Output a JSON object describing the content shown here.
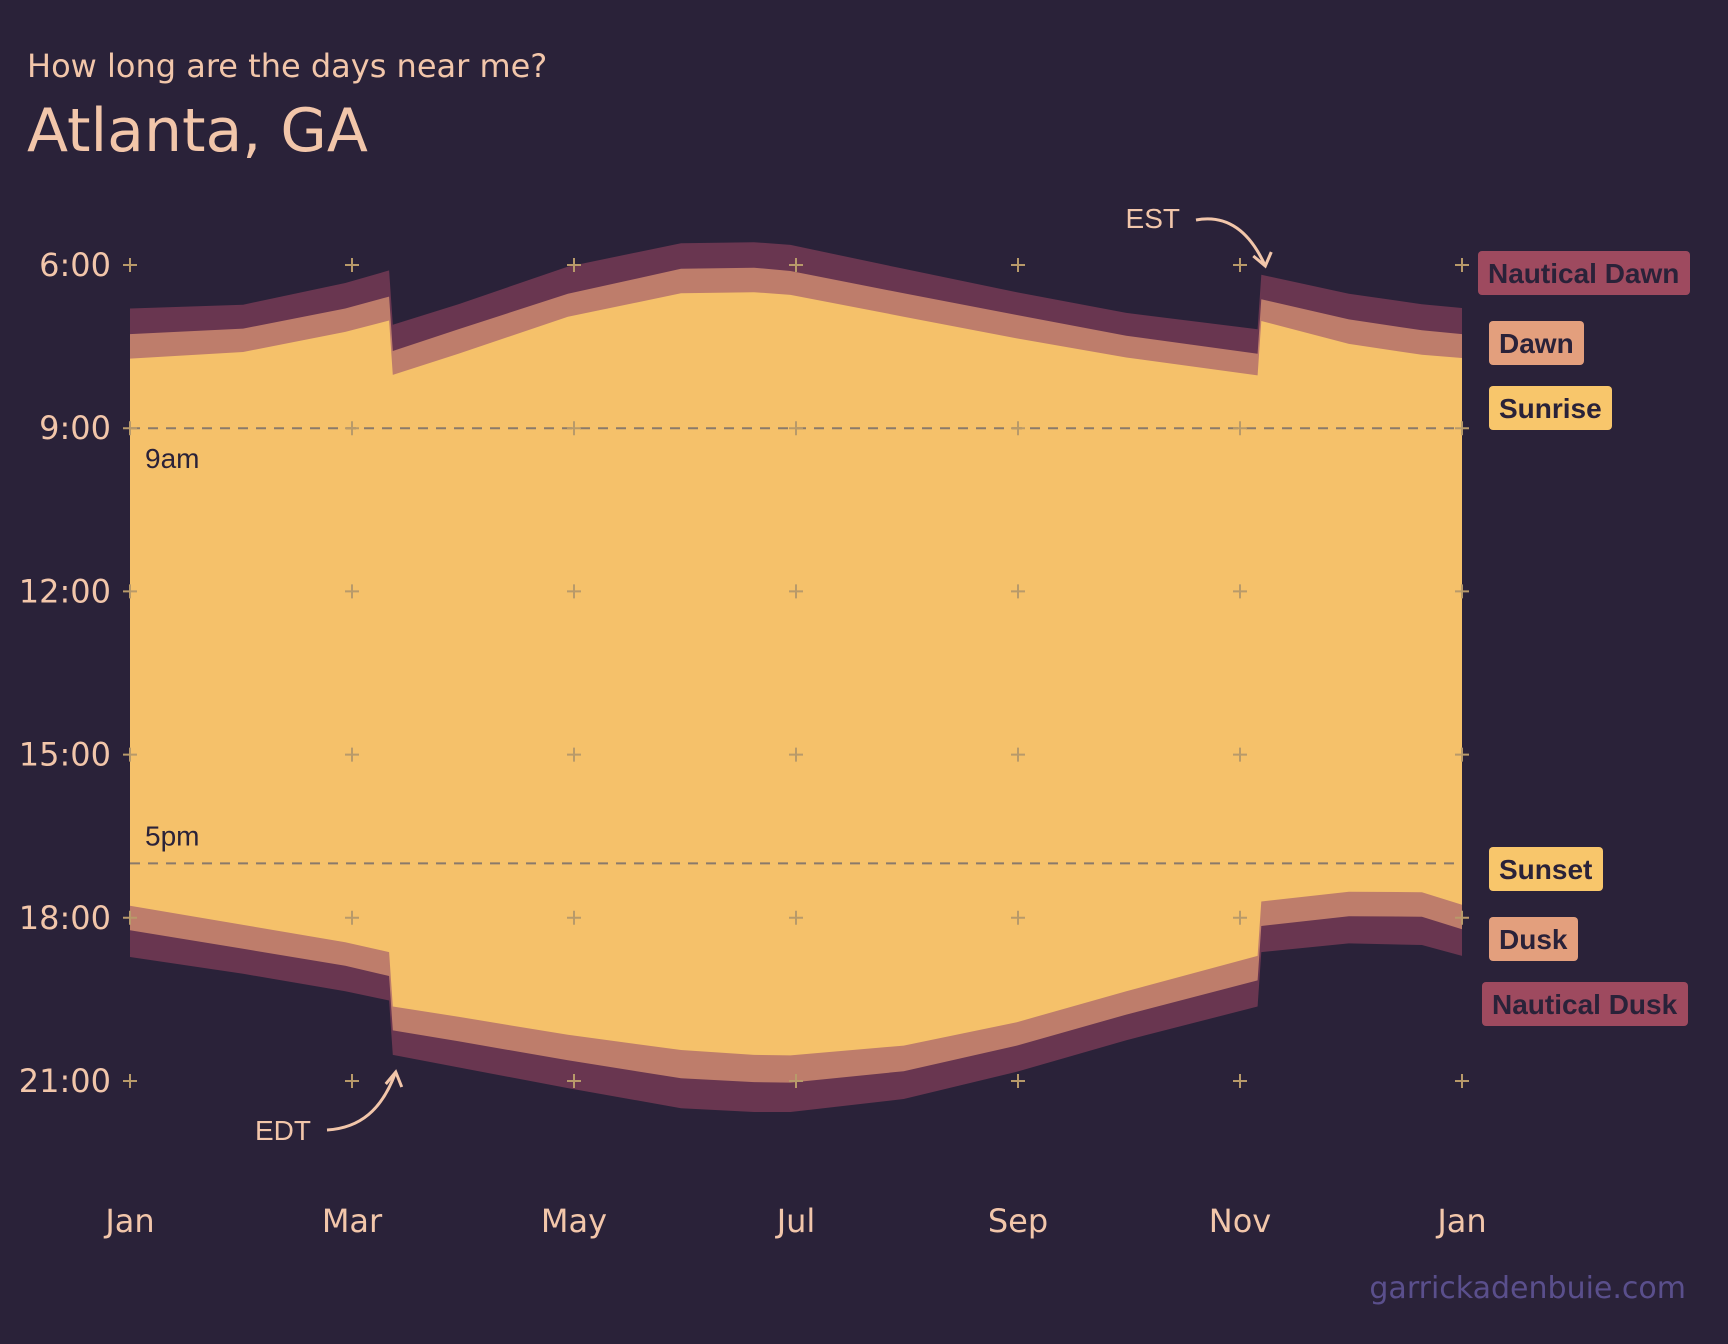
{
  "header": {
    "subtitle": "How long are the days near me?",
    "title": "Atlanta, GA"
  },
  "credit": "garrickadenbuie.com",
  "colors": {
    "background": "#2a2239",
    "nautical": "#693650",
    "civil": "#be7d6b",
    "daylight": "#f5c16a",
    "text": "#f2c6aa",
    "credit": "#5a4f8c",
    "legend_nautical": "#9e4a5f",
    "legend_civil": "#e39f7d",
    "legend_sunrise": "#f8c66b"
  },
  "chart_data": {
    "type": "area",
    "x": [
      "2021-01-01",
      "2021-02-01",
      "2021-03-01",
      "2021-03-13",
      "2021-03-14",
      "2021-04-01",
      "2021-05-01",
      "2021-06-01",
      "2021-06-21",
      "2021-07-01",
      "2021-08-01",
      "2021-09-01",
      "2021-10-01",
      "2021-11-06",
      "2021-11-07",
      "2021-12-01",
      "2021-12-21",
      "2022-01-01"
    ],
    "series": [
      {
        "name": "Nautical Dawn",
        "values": [
          6.8,
          6.73,
          6.33,
          6.1,
          7.1,
          6.72,
          6.03,
          5.6,
          5.58,
          5.63,
          6.07,
          6.5,
          6.88,
          7.18,
          6.18,
          6.53,
          6.72,
          6.79
        ]
      },
      {
        "name": "Dawn",
        "values": [
          7.27,
          7.17,
          6.8,
          6.58,
          7.58,
          7.18,
          6.53,
          6.07,
          6.05,
          6.11,
          6.52,
          6.92,
          7.3,
          7.63,
          6.63,
          7.0,
          7.2,
          7.27
        ]
      },
      {
        "name": "Sunrise",
        "values": [
          7.72,
          7.6,
          7.23,
          7.02,
          8.02,
          7.63,
          6.95,
          6.52,
          6.5,
          6.55,
          6.95,
          7.35,
          7.7,
          8.03,
          7.03,
          7.45,
          7.65,
          7.71
        ]
      },
      {
        "name": "Sunset",
        "values": [
          17.78,
          18.13,
          18.45,
          18.63,
          19.63,
          19.82,
          20.15,
          20.43,
          20.52,
          20.53,
          20.35,
          19.92,
          19.35,
          18.7,
          17.7,
          17.52,
          17.53,
          17.76
        ]
      },
      {
        "name": "Dusk",
        "values": [
          18.23,
          18.57,
          18.88,
          19.07,
          20.07,
          20.27,
          20.62,
          20.95,
          21.02,
          21.03,
          20.82,
          20.35,
          19.78,
          19.15,
          18.15,
          17.97,
          17.98,
          18.21
        ]
      },
      {
        "name": "Nautical Dusk",
        "values": [
          18.72,
          19.03,
          19.35,
          19.52,
          20.52,
          20.75,
          21.13,
          21.5,
          21.57,
          21.57,
          21.33,
          20.83,
          20.25,
          19.63,
          18.63,
          18.47,
          18.5,
          18.7
        ]
      }
    ],
    "y_ticks": [
      "6:00",
      "9:00",
      "12:00",
      "15:00",
      "18:00",
      "21:00"
    ],
    "x_ticks": [
      "Jan",
      "Mar",
      "May",
      "Jul",
      "Sep",
      "Nov",
      "Jan"
    ],
    "ylim": [
      4.5,
      22.5
    ],
    "reference_lines": [
      {
        "label": "9am",
        "value": 9
      },
      {
        "label": "5pm",
        "value": 17
      }
    ],
    "annotations": [
      {
        "label": "EST",
        "date": "2021-11-07"
      },
      {
        "label": "EDT",
        "date": "2021-03-14"
      }
    ],
    "legend": {
      "placement": "right",
      "items": [
        "Nautical Dawn",
        "Dawn",
        "Sunrise",
        "Sunset",
        "Dusk",
        "Nautical Dusk"
      ]
    }
  }
}
